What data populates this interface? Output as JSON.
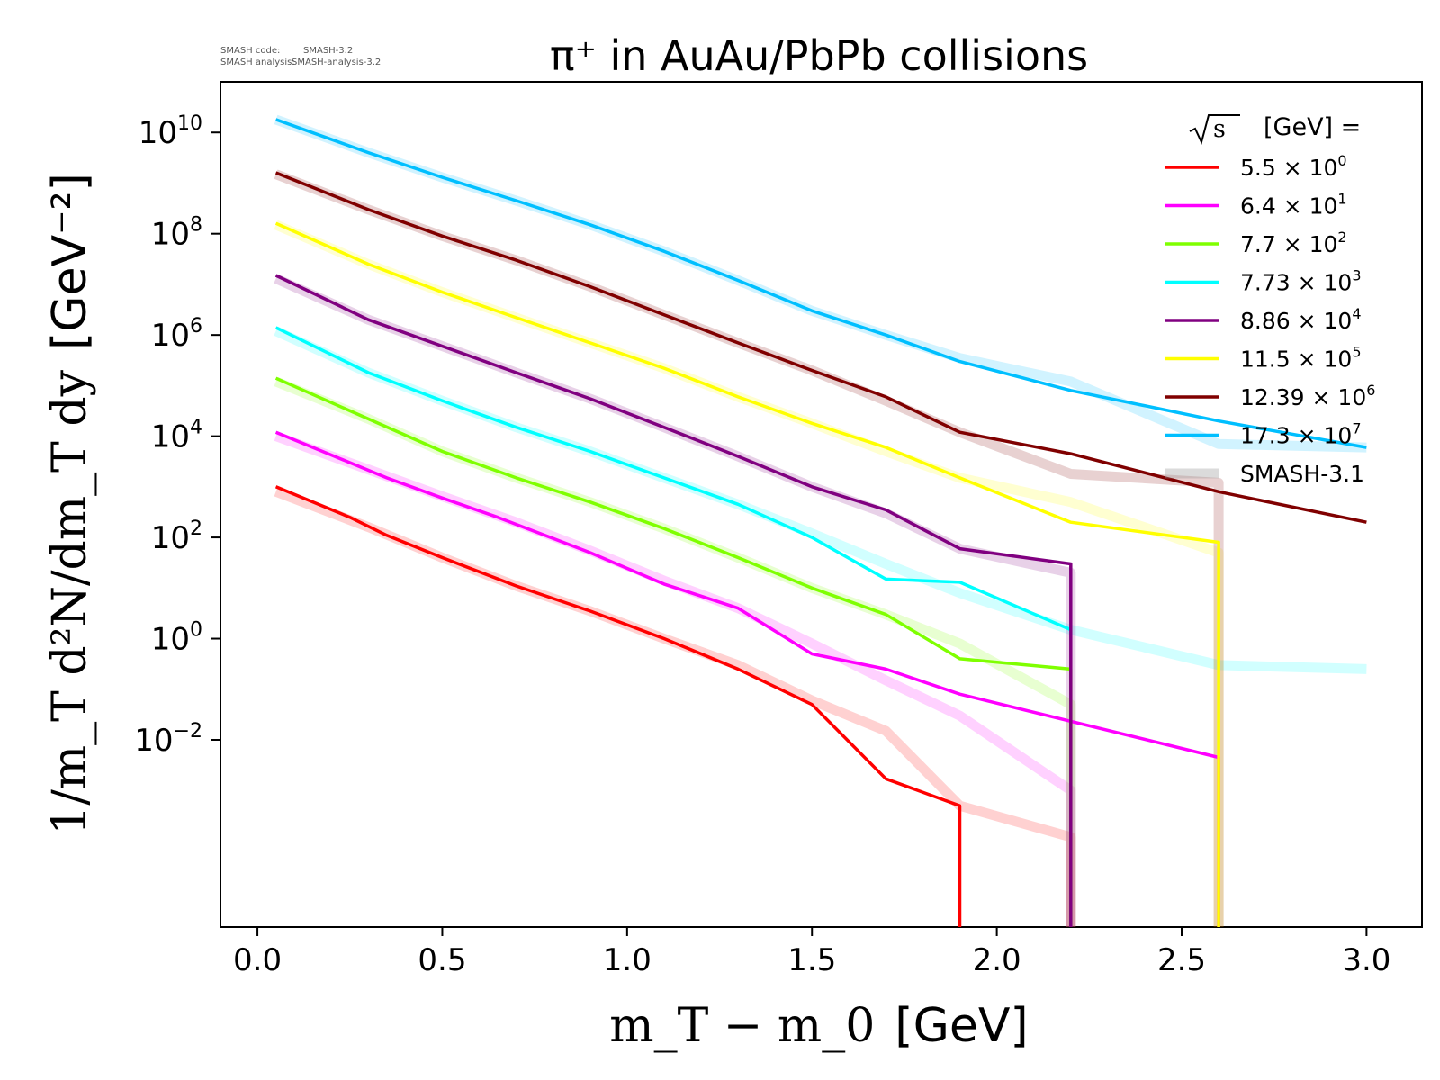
{
  "annotation": {
    "line1_key": "SMASH code:",
    "line1_val": "SMASH-3.2",
    "line2_key": "SMASH analysis:",
    "line2_val": "SMASH-analysis-3.2"
  },
  "chart_data": {
    "type": "line",
    "title": "π⁺ in AuAu/PbPb collisions",
    "xlabel_math": "m_T − m_0",
    "xlabel_unit": "[GeV]",
    "ylabel_math": "1/m_T d²N/dm_T dy",
    "ylabel_unit": "[GeV⁻²]",
    "yscale": "log",
    "xlim": [
      -0.1,
      3.15
    ],
    "ylim": [
      2e-06,
      100000000000.0
    ],
    "xticks": [
      "0.0",
      "0.5",
      "1.0",
      "1.5",
      "2.0",
      "2.5",
      "3.0"
    ],
    "yticks": [
      {
        "base": "10",
        "exp": "−2"
      },
      {
        "base": "10",
        "exp": "0"
      },
      {
        "base": "10",
        "exp": "2"
      },
      {
        "base": "10",
        "exp": "4"
      },
      {
        "base": "10",
        "exp": "6"
      },
      {
        "base": "10",
        "exp": "8"
      },
      {
        "base": "10",
        "exp": "10"
      }
    ],
    "legend": {
      "placement": "top-right",
      "title_unit": "[GeV] =",
      "reference_label": "SMASH-3.1"
    },
    "series": [
      {
        "name": "5.5 × 10⁰",
        "label_mantissa": "5.5",
        "label_exp": "0",
        "color": "#ff0000",
        "x": [
          0.05,
          0.25,
          0.35,
          0.5,
          0.7,
          0.9,
          1.1,
          1.3,
          1.5,
          1.7,
          1.9,
          1.9
        ],
        "y": [
          1000,
          250,
          110,
          40,
          11,
          3.5,
          1.0,
          0.25,
          0.05,
          0.0017,
          0.0005,
          1e-07
        ],
        "reference": {
          "x": [
            0.05,
            0.3,
            0.5,
            0.7,
            0.9,
            1.1,
            1.3,
            1.5,
            1.7,
            1.9,
            2.2,
            2.2
          ],
          "y": [
            800,
            160,
            40,
            11,
            3.5,
            1.0,
            0.3,
            0.06,
            0.015,
            0.0005,
            0.00012,
            1e-07
          ]
        }
      },
      {
        "name": "6.4 × 10¹",
        "label_mantissa": "6.4",
        "label_exp": "1",
        "color": "#ff00ff",
        "x": [
          0.05,
          0.25,
          0.35,
          0.5,
          0.65,
          0.9,
          1.1,
          1.3,
          1.5,
          1.7,
          1.9,
          2.6,
          2.6
        ],
        "y": [
          12000,
          3000,
          1500,
          600,
          250,
          50,
          12,
          4,
          0.5,
          0.25,
          0.08,
          0.0045,
          1e-07
        ],
        "reference": {
          "x": [
            0.05,
            0.3,
            0.5,
            0.7,
            0.9,
            1.1,
            1.3,
            1.5,
            1.7,
            1.9,
            2.2,
            2.2
          ],
          "y": [
            10000,
            2200,
            650,
            200,
            55,
            14,
            4,
            0.8,
            0.15,
            0.03,
            0.001,
            1e-07
          ]
        }
      },
      {
        "name": "7.7 × 10²",
        "label_mantissa": "7.7",
        "label_exp": "2",
        "color": "#7fff00",
        "x": [
          0.05,
          0.3,
          0.5,
          0.7,
          0.9,
          1.1,
          1.3,
          1.5,
          1.7,
          1.9,
          2.2,
          2.2
        ],
        "y": [
          140000,
          22000,
          5000,
          1500,
          500,
          150,
          40,
          10,
          3,
          0.4,
          0.25,
          1e-07
        ],
        "reference": {
          "x": [
            0.05,
            0.3,
            0.5,
            0.7,
            0.9,
            1.1,
            1.3,
            1.5,
            1.7,
            1.9,
            2.2,
            2.2
          ],
          "y": [
            120000,
            22000,
            5000,
            1500,
            500,
            150,
            40,
            10,
            3,
            0.8,
            0.05,
            1e-07
          ]
        }
      },
      {
        "name": "7.73 × 10³",
        "label_mantissa": "7.73",
        "label_exp": "3",
        "color": "#00ffff",
        "x": [
          0.05,
          0.3,
          0.5,
          0.7,
          0.9,
          1.1,
          1.3,
          1.5,
          1.7,
          1.9,
          2.2
        ],
        "y": [
          1400000,
          180000,
          50000,
          15000,
          5000,
          1500,
          450,
          100,
          15,
          13,
          1.5
        ],
        "reference": {
          "x": [
            0.05,
            0.3,
            0.5,
            0.7,
            0.9,
            1.1,
            1.3,
            1.5,
            1.7,
            1.9,
            2.2,
            2.6,
            3.0
          ],
          "y": [
            1200000,
            180000,
            50000,
            15000,
            5000,
            1500,
            450,
            120,
            30,
            8,
            1.5,
            0.3,
            0.25
          ]
        }
      },
      {
        "name": "8.86 × 10⁴",
        "label_mantissa": "8.86",
        "label_exp": "4",
        "color": "#800080",
        "x": [
          0.05,
          0.3,
          0.5,
          0.7,
          0.9,
          1.1,
          1.3,
          1.5,
          1.7,
          1.9,
          2.2,
          2.2
        ],
        "y": [
          15000000,
          2000000,
          600000,
          180000,
          55000,
          15000,
          4000,
          1000,
          350,
          60,
          30,
          1e-07
        ],
        "reference": {
          "x": [
            0.05,
            0.3,
            0.5,
            0.7,
            0.9,
            1.1,
            1.3,
            1.5,
            1.7,
            1.9,
            2.2,
            2.2
          ],
          "y": [
            13000000,
            2000000,
            600000,
            180000,
            55000,
            15000,
            4000,
            1000,
            300,
            60,
            20,
            1e-07
          ]
        }
      },
      {
        "name": "11.5 × 10⁵",
        "label_mantissa": "11.5",
        "label_exp": "5",
        "color": "#ffff00",
        "x": [
          0.05,
          0.3,
          0.5,
          0.7,
          0.9,
          1.1,
          1.3,
          1.5,
          1.7,
          1.9,
          2.2,
          2.6,
          2.6
        ],
        "y": [
          160000000,
          25000000,
          7000000,
          2200000,
          700000,
          220000,
          60000,
          18000,
          6000,
          1500,
          200,
          80,
          1e-07
        ],
        "reference": {
          "x": [
            0.05,
            0.3,
            0.5,
            0.7,
            0.9,
            1.1,
            1.3,
            1.5,
            1.7,
            1.9,
            2.2,
            2.6,
            2.6
          ],
          "y": [
            150000000,
            25000000,
            7000000,
            2200000,
            700000,
            220000,
            60000,
            18000,
            5000,
            1500,
            500,
            50,
            1e-07
          ]
        }
      },
      {
        "name": "12.39 × 10⁶",
        "label_mantissa": "12.39",
        "label_exp": "6",
        "color": "#800000",
        "x": [
          0.05,
          0.3,
          0.5,
          0.7,
          0.9,
          1.1,
          1.3,
          1.5,
          1.7,
          1.9,
          2.2,
          2.6,
          3.0
        ],
        "y": [
          1600000000,
          300000000,
          90000000,
          30000000,
          9000000,
          2500000,
          700000,
          200000,
          60000,
          12000,
          4500,
          800,
          200
        ],
        "reference": {
          "x": [
            0.05,
            0.3,
            0.5,
            0.7,
            0.9,
            1.1,
            1.3,
            1.5,
            1.7,
            1.9,
            2.2,
            2.6,
            2.6
          ],
          "y": [
            1500000000,
            300000000,
            90000000,
            30000000,
            9000000,
            2500000,
            700000,
            200000,
            50000,
            12000,
            1800,
            1200,
            1e-07
          ]
        }
      },
      {
        "name": "17.3 × 10⁷",
        "label_mantissa": "17.3",
        "label_exp": "7",
        "color": "#00bfff",
        "x": [
          0.05,
          0.3,
          0.5,
          0.7,
          0.9,
          1.1,
          1.3,
          1.5,
          1.7,
          1.9,
          2.2,
          2.6,
          3.0
        ],
        "y": [
          18000000000,
          4000000000,
          1300000000,
          450000000,
          150000000,
          45000000,
          12000000,
          3000000,
          1000000,
          300000,
          80000,
          20000,
          6000
        ],
        "reference": {
          "x": [
            0.05,
            0.3,
            0.5,
            0.7,
            0.9,
            1.1,
            1.3,
            1.5,
            1.7,
            1.9,
            2.2,
            2.6,
            3.0
          ],
          "y": [
            18000000000,
            4000000000,
            1300000000,
            450000000,
            150000000,
            45000000,
            12000000,
            3000000,
            1000000,
            350000,
            120000,
            7000,
            6000
          ]
        }
      }
    ]
  }
}
